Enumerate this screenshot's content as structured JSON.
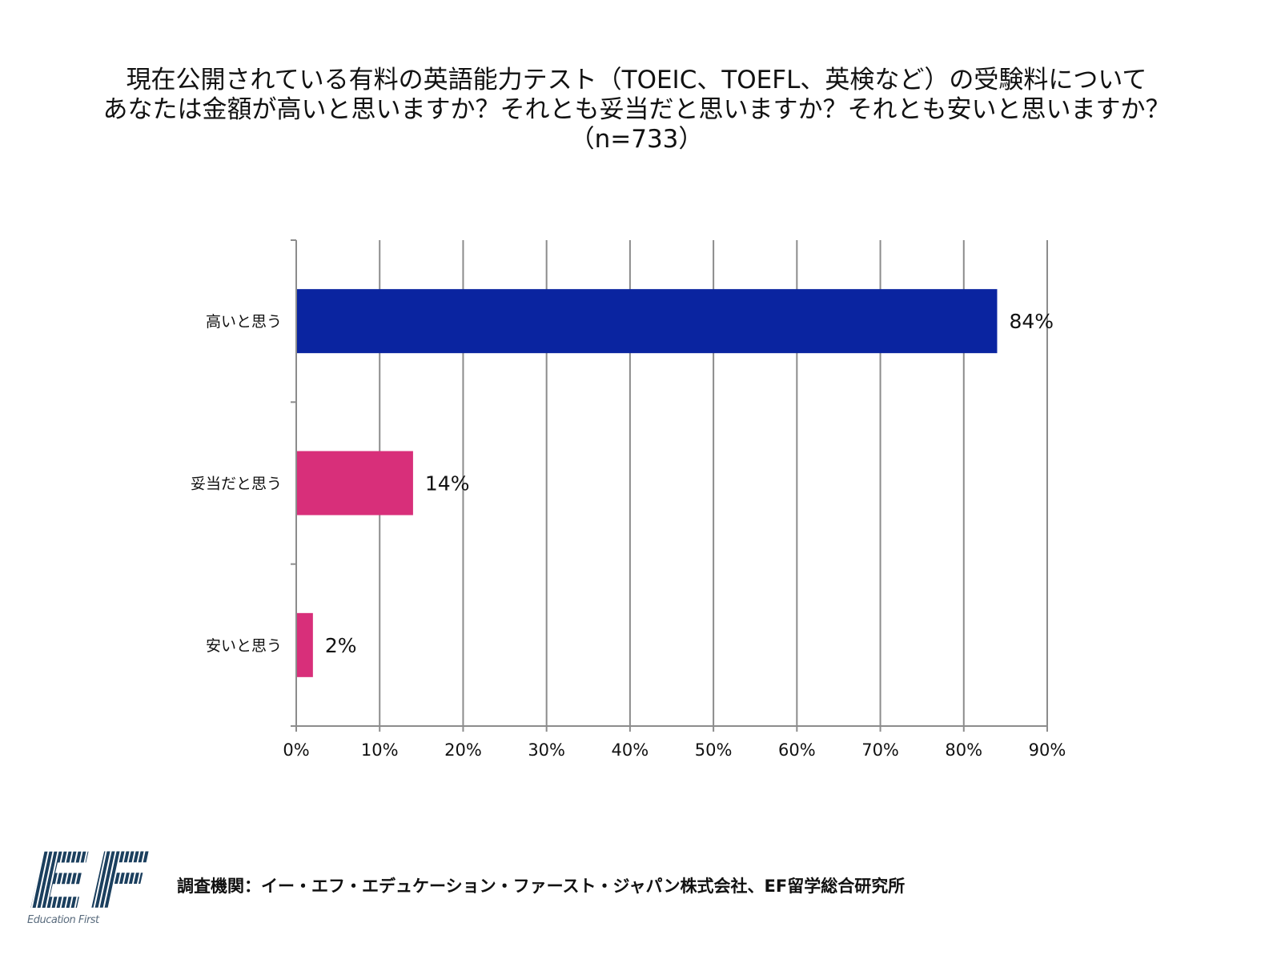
{
  "chart_data": {
    "type": "bar",
    "orientation": "horizontal",
    "title_lines": [
      "現在公開されている有料の英語能力テスト（TOEIC、TOEFL、英検など）の受験料について",
      "あなたは金額が高いと思いますか？それとも妥当だと思いますか？それとも安いと思いますか？",
      "（n=733）"
    ],
    "categories": [
      "高いと思う",
      "妥当だと思う",
      "安いと思う"
    ],
    "values": [
      84,
      14,
      2
    ],
    "value_labels": [
      "84%",
      "14%",
      "2%"
    ],
    "bar_colors": [
      "#0a24a0",
      "#d82f7a",
      "#d82f7a"
    ],
    "xlim": [
      0,
      90
    ],
    "xticks": [
      0,
      10,
      20,
      30,
      40,
      50,
      60,
      70,
      80,
      90
    ],
    "xtick_labels": [
      "0%",
      "10%",
      "20%",
      "30%",
      "40%",
      "50%",
      "60%",
      "70%",
      "80%",
      "90%"
    ],
    "grid": true,
    "xlabel": "",
    "ylabel": ""
  },
  "footer": {
    "logo_text": "EF",
    "logo_tagline": "Education First",
    "source": "調査機関：イー・エフ・エデュケーション・ファースト・ジャパン株式会社、EF留学総合研究所"
  },
  "colors": {
    "grid": "#8c8c8c",
    "logo": "#1b3f5e"
  }
}
